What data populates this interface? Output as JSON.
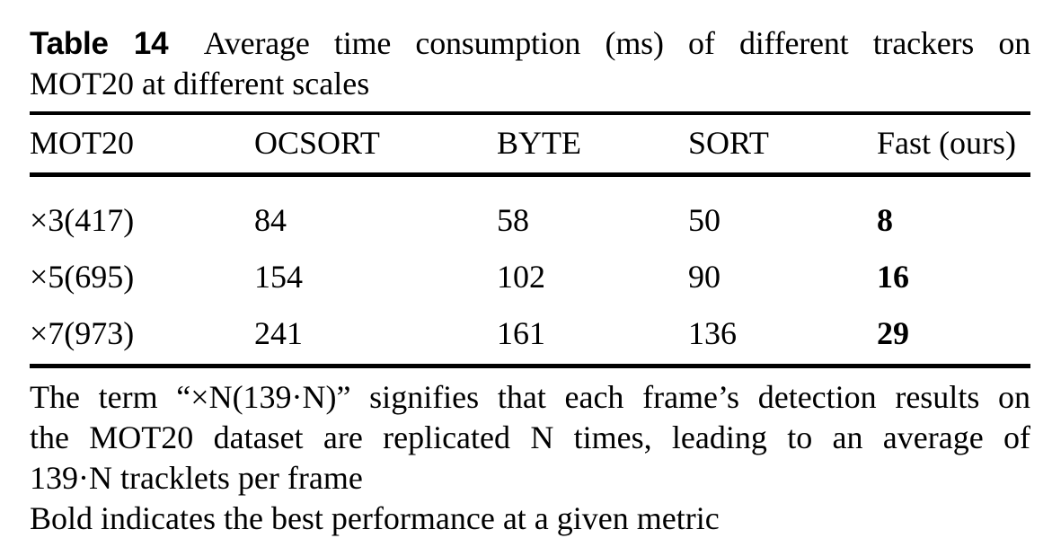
{
  "caption": {
    "label": "Table 14",
    "line1": "Average time consumption (ms) of different trackers on",
    "line2": "MOT20 at different scales"
  },
  "table": {
    "columns": [
      "MOT20",
      "OCSORT",
      "BYTE",
      "SORT",
      "Fast (ours)"
    ],
    "rows": [
      [
        "×3(417)",
        "84",
        "58",
        "50",
        "8"
      ],
      [
        "×5(695)",
        "154",
        "102",
        "90",
        "16"
      ],
      [
        "×7(973)",
        "241",
        "161",
        "136",
        "29"
      ]
    ],
    "bold_best_column": "Fast (ours)"
  },
  "footnote": {
    "line1": "The term “×N(139·N)” signifies that each frame’s detection results on",
    "line2": "the MOT20 dataset are replicated N times, leading to an average of",
    "line3": "139·N tracklets per frame",
    "line4": "Bold indicates the best performance at a given metric"
  },
  "colors": {
    "text": "#000000",
    "background": "#ffffff",
    "rule": "#000000"
  }
}
